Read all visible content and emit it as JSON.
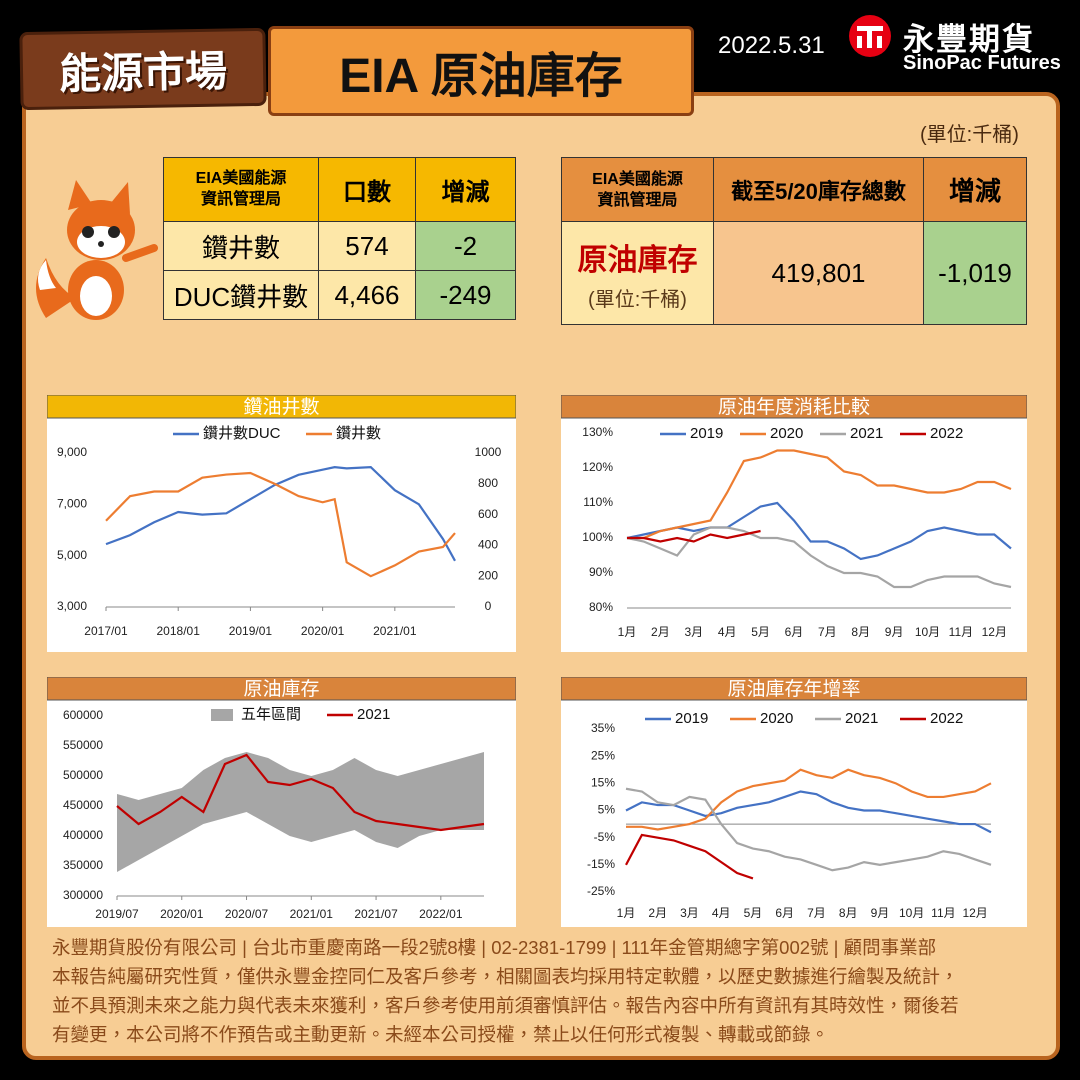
{
  "header": {
    "badge": "能源市場",
    "title": "EIA 原油庫存",
    "date": "2022.5.31",
    "logo_cn": "永豐期貨",
    "logo_en": "SinoPac Futures",
    "unit": "(單位:千桶)"
  },
  "table1": {
    "columns": [
      "EIA美國能源資訊管理局",
      "口數",
      "增減"
    ],
    "rows": [
      [
        "鑽井數",
        "574",
        "-2"
      ],
      [
        "DUC鑽井數",
        "4,466",
        "-249"
      ]
    ]
  },
  "table2": {
    "columns": [
      "EIA美國能源資訊管理局",
      "截至5/20庫存總數",
      "增減"
    ],
    "row": {
      "label": "原油庫存",
      "unit": "(單位:千桶)",
      "value": "419,801",
      "change": "-1,019"
    }
  },
  "chart_data": [
    {
      "type": "line",
      "title": "鑽油井數",
      "x": [
        "2017/01",
        "2017/05",
        "2017/09",
        "2018/01",
        "2018/05",
        "2018/09",
        "2019/01",
        "2019/05",
        "2019/09",
        "2020/01",
        "2020/03",
        "2020/05",
        "2020/09",
        "2021/01",
        "2021/05",
        "2021/09",
        "2021/11"
      ],
      "xlim": [
        "2017/01",
        "2021/11"
      ],
      "xticks": [
        "2017/01",
        "2018/01",
        "2019/01",
        "2020/01",
        "2021/01"
      ],
      "ylim": [
        3000,
        9000
      ],
      "yticks": [
        {
          "value": 3000,
          "label": "3,000"
        },
        {
          "value": 5000,
          "label": "5,000"
        },
        {
          "value": 7000,
          "label": "7,000"
        },
        {
          "value": 9000,
          "label": "9,000"
        }
      ],
      "y2lim": [
        0,
        1000
      ],
      "y2ticks": [
        0,
        200,
        400,
        600,
        800,
        1000
      ],
      "grid": false,
      "series": [
        {
          "name": "鑽井數DUC",
          "color": "#4472c4",
          "values": [
            5450,
            5800,
            6300,
            6700,
            6600,
            6650,
            7200,
            7750,
            8150,
            8350,
            8450,
            8400,
            8450,
            7550,
            7000,
            5650,
            4800
          ]
        },
        {
          "name": "鑽井數",
          "color": "#ed7d31",
          "axis": "y2",
          "values": [
            560,
            720,
            750,
            750,
            840,
            860,
            870,
            800,
            720,
            680,
            700,
            290,
            200,
            270,
            360,
            390,
            480
          ]
        }
      ]
    },
    {
      "type": "line",
      "title": "原油年度消耗比較",
      "categories": [
        "1月",
        null,
        "2月",
        null,
        "3月",
        null,
        "4月",
        null,
        "5月",
        null,
        "6月",
        null,
        "7月",
        null,
        "8月",
        null,
        "9月",
        null,
        "10月",
        null,
        "11月",
        null,
        "12月",
        null
      ],
      "ylim": [
        80,
        130
      ],
      "yticks": [
        {
          "value": 80,
          "label": "80%"
        },
        {
          "value": 90,
          "label": "90%"
        },
        {
          "value": 100,
          "label": "100%"
        },
        {
          "value": 110,
          "label": "110%"
        },
        {
          "value": 120,
          "label": "120%"
        },
        {
          "value": 130,
          "label": "130%"
        }
      ],
      "grid": false,
      "series": [
        {
          "name": "2019",
          "color": "#4472c4",
          "values": [
            100,
            101,
            102,
            103,
            102,
            103,
            103,
            106,
            109,
            110,
            105,
            99,
            99,
            97,
            94,
            95,
            97,
            99,
            102,
            103,
            102,
            101,
            101,
            97
          ]
        },
        {
          "name": "2020",
          "color": "#ed7d31",
          "values": [
            100,
            100,
            102,
            103,
            104,
            105,
            113,
            122,
            123,
            125,
            125,
            124,
            123,
            119,
            118,
            115,
            115,
            114,
            113,
            113,
            114,
            116,
            116,
            114
          ]
        },
        {
          "name": "2021",
          "color": "#a5a5a5",
          "values": [
            100,
            99,
            97,
            95,
            101,
            103,
            103,
            102,
            100,
            100,
            99,
            95,
            92,
            90,
            90,
            89,
            86,
            86,
            88,
            89,
            89,
            89,
            87,
            86
          ]
        },
        {
          "name": "2022",
          "color": "#c00000",
          "values": [
            100,
            100,
            99,
            100,
            99,
            101,
            100,
            101,
            102,
            null,
            null,
            null,
            null,
            null,
            null,
            null,
            null,
            null,
            null,
            null,
            null,
            null,
            null,
            null
          ]
        }
      ]
    },
    {
      "type": "line",
      "title": "原油庫存",
      "x": [
        "2019/07",
        "2019/09",
        "2019/11",
        "2020/01",
        "2020/03",
        "2020/05",
        "2020/07",
        "2020/09",
        "2020/11",
        "2021/01",
        "2021/03",
        "2021/05",
        "2021/07",
        "2021/09",
        "2021/11",
        "2022/01",
        "2022/03",
        "2022/05"
      ],
      "xlim": [
        "2019/07",
        "2022/05"
      ],
      "xticks": [
        "2019/07",
        "2020/01",
        "2020/07",
        "2021/01",
        "2021/07",
        "2022/01"
      ],
      "ylim": [
        300000,
        600000
      ],
      "yticks": [
        300000,
        350000,
        400000,
        450000,
        500000,
        550000,
        600000
      ],
      "grid": false,
      "series": [
        {
          "name": "五年區間",
          "color": "#a6a6a6",
          "low": [
            340000,
            360000,
            380000,
            400000,
            420000,
            430000,
            440000,
            420000,
            400000,
            390000,
            400000,
            410000,
            390000,
            380000,
            400000,
            410000,
            410000,
            410000
          ],
          "high": [
            470000,
            460000,
            470000,
            480000,
            510000,
            530000,
            540000,
            530000,
            510000,
            500000,
            510000,
            530000,
            510000,
            500000,
            510000,
            520000,
            530000,
            540000
          ]
        },
        {
          "name": "2021",
          "color": "#c00000",
          "values": [
            450000,
            420000,
            440000,
            465000,
            440000,
            520000,
            535000,
            490000,
            485000,
            495000,
            480000,
            440000,
            425000,
            420000,
            415000,
            410000,
            415000,
            420000
          ]
        }
      ]
    },
    {
      "type": "line",
      "title": "原油庫存年增率",
      "categories": [
        "1月",
        null,
        "2月",
        null,
        "3月",
        null,
        "4月",
        null,
        "5月",
        null,
        "6月",
        null,
        "7月",
        null,
        "8月",
        null,
        "9月",
        null,
        "10月",
        null,
        "11月",
        null,
        "12月",
        null
      ],
      "ylim": [
        -25,
        35
      ],
      "yticks": [
        {
          "value": -25,
          "label": "-25%"
        },
        {
          "value": -15,
          "label": "-15%"
        },
        {
          "value": -5,
          "label": "-5%"
        },
        {
          "value": 5,
          "label": "5%"
        },
        {
          "value": 15,
          "label": "15%"
        },
        {
          "value": 25,
          "label": "25%"
        },
        {
          "value": 35,
          "label": "35%"
        }
      ],
      "grid": false,
      "series": [
        {
          "name": "2019",
          "color": "#4472c4",
          "values": [
            5,
            8,
            7,
            7,
            5,
            3,
            4,
            6,
            7,
            8,
            10,
            12,
            11,
            8,
            6,
            5,
            5,
            4,
            3,
            2,
            1,
            0,
            0,
            -3
          ]
        },
        {
          "name": "2020",
          "color": "#ed7d31",
          "values": [
            -1,
            -1,
            -2,
            -1,
            0,
            2,
            8,
            12,
            14,
            15,
            16,
            20,
            18,
            17,
            20,
            18,
            17,
            15,
            12,
            10,
            10,
            11,
            12,
            15
          ]
        },
        {
          "name": "2021",
          "color": "#a5a5a5",
          "values": [
            13,
            12,
            8,
            7,
            10,
            9,
            0,
            -7,
            -9,
            -10,
            -12,
            -13,
            -15,
            -17,
            -16,
            -14,
            -15,
            -14,
            -13,
            -12,
            -10,
            -11,
            -13,
            -15
          ]
        },
        {
          "name": "2022",
          "color": "#c00000",
          "values": [
            -15,
            -4,
            -5,
            -6,
            -8,
            -10,
            -14,
            -18,
            -20,
            null,
            null,
            null,
            null,
            null,
            null,
            null,
            null,
            null,
            null,
            null,
            null,
            null,
            null,
            null
          ]
        }
      ]
    }
  ],
  "footer": [
    "永豐期貨股份有限公司 | 台北市重慶南路一段2號8樓 | 02-2381-1799 | 111年金管期總字第002號 | 顧問事業部",
    "本報告純屬研究性質，僅供永豐金控同仁及客戶參考，相關圖表均採用特定軟體，以歷史數據進行繪製及統計，",
    "並不具預測未來之能力與代表未來獲利，客戶參考使用前須審慎評估。報告內容中所有資訊有其時效性，爾後若",
    "有變更，本公司將不作預告或主動更新。未經本公司授權，禁止以任何形式複製、轉載或節錄。"
  ]
}
